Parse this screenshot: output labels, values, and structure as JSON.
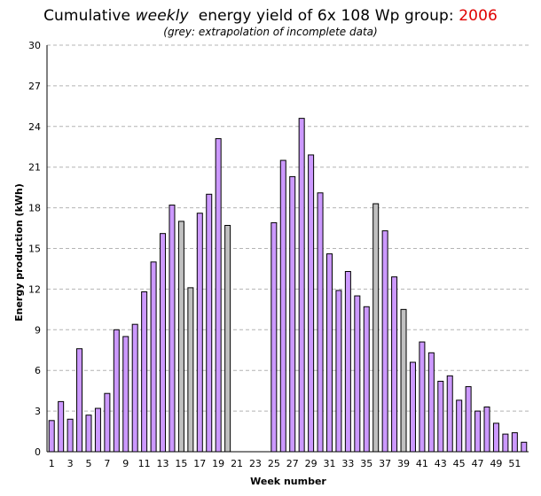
{
  "chart_data": {
    "type": "bar",
    "title_prefix": "Cumulative ",
    "title_emph": "weekly",
    "title_mid": "  energy yield of 6x 108 Wp group: ",
    "title_year": "2006",
    "subtitle": "(grey: extrapolation of incomplete data)",
    "xlabel": "Week number",
    "ylabel": "Energy production (kWh)",
    "ylim": [
      0,
      30
    ],
    "yticks": [
      0,
      3,
      6,
      9,
      12,
      15,
      18,
      21,
      24,
      27,
      30
    ],
    "xtick_labels": [
      "1",
      "3",
      "5",
      "7",
      "9",
      "11",
      "13",
      "15",
      "17",
      "19",
      "21",
      "23",
      "25",
      "27",
      "29",
      "31",
      "33",
      "35",
      "37",
      "39",
      "41",
      "43",
      "45",
      "47",
      "49",
      "51"
    ],
    "grid": true,
    "colors": {
      "measured": "#cc99ff",
      "extrapolated": "#c0c0c0",
      "year": "#e00000"
    },
    "weeks": [
      1,
      2,
      3,
      4,
      5,
      6,
      7,
      8,
      9,
      10,
      11,
      12,
      13,
      14,
      15,
      16,
      17,
      18,
      19,
      20,
      21,
      22,
      23,
      24,
      25,
      26,
      27,
      28,
      29,
      30,
      31,
      32,
      33,
      34,
      35,
      36,
      37,
      38,
      39,
      40,
      41,
      42,
      43,
      44,
      45,
      46,
      47,
      48,
      49,
      50,
      51,
      52
    ],
    "values": [
      2.3,
      3.7,
      2.4,
      7.6,
      2.7,
      3.2,
      4.3,
      9.0,
      8.5,
      9.4,
      11.8,
      14.0,
      16.1,
      18.2,
      17.0,
      12.1,
      17.6,
      19.0,
      23.1,
      16.7,
      0,
      0,
      0,
      0,
      16.9,
      21.5,
      20.3,
      24.6,
      21.9,
      19.1,
      14.6,
      11.9,
      13.3,
      11.5,
      10.7,
      18.3,
      16.3,
      12.9,
      10.5,
      6.6,
      8.1,
      7.3,
      5.2,
      5.6,
      3.8,
      4.8,
      3.0,
      3.3,
      2.1,
      1.3,
      1.4,
      0.7
    ],
    "series": [
      {
        "name": "measured",
        "weeks": [
          1,
          2,
          3,
          4,
          5,
          6,
          7,
          8,
          9,
          10,
          11,
          12,
          13,
          14,
          17,
          18,
          19,
          25,
          26,
          27,
          28,
          29,
          30,
          31,
          32,
          33,
          34,
          35,
          37,
          38,
          40,
          41,
          42,
          43,
          44,
          45,
          46,
          47,
          48,
          49,
          50,
          51,
          52
        ]
      },
      {
        "name": "extrapolated",
        "weeks": [
          15,
          16,
          20,
          36,
          39
        ]
      }
    ]
  }
}
